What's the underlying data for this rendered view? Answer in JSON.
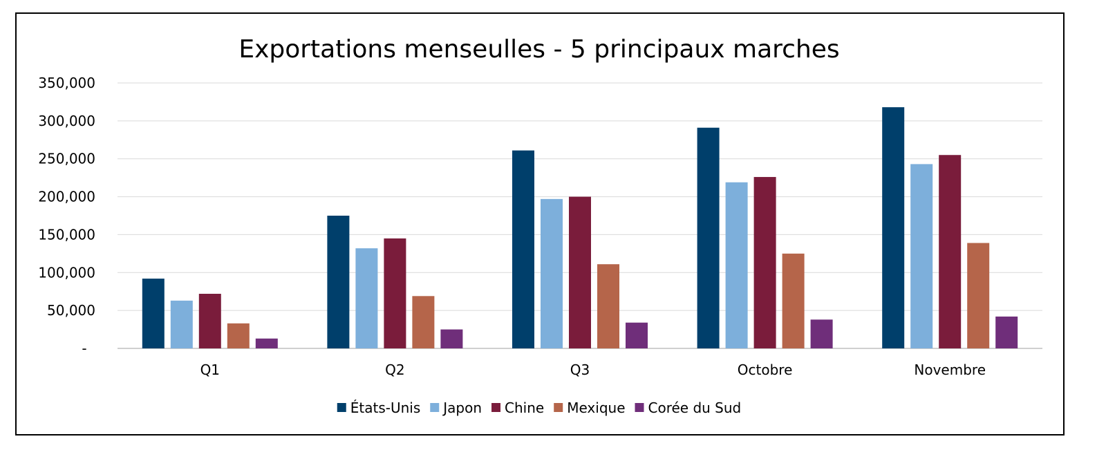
{
  "chart_data": {
    "type": "bar",
    "title": "Exportations menseulles - 5 principaux marches",
    "xlabel": "",
    "ylabel": "",
    "categories": [
      "Q1",
      "Q2",
      "Q3",
      "Octobre",
      "Novembre"
    ],
    "y_ticks": [
      {
        "value": 0,
        "label": "-"
      },
      {
        "value": 50000,
        "label": "50,000"
      },
      {
        "value": 100000,
        "label": "100,000"
      },
      {
        "value": 150000,
        "label": "150,000"
      },
      {
        "value": 200000,
        "label": "200,000"
      },
      {
        "value": 250000,
        "label": "250,000"
      },
      {
        "value": 300000,
        "label": "300,000"
      },
      {
        "value": 350000,
        "label": "350,000"
      }
    ],
    "ylim": [
      0,
      350000
    ],
    "grid": true,
    "legend_position": "bottom",
    "series": [
      {
        "name": "États-Unis",
        "color": "#003f6b",
        "values": [
          92000,
          175000,
          261000,
          291000,
          318000
        ]
      },
      {
        "name": "Japon",
        "color": "#7dafdb",
        "values": [
          63000,
          132000,
          197000,
          219000,
          243000
        ]
      },
      {
        "name": "Chine",
        "color": "#7a1c3b",
        "values": [
          72000,
          145000,
          200000,
          226000,
          255000
        ]
      },
      {
        "name": "Mexique",
        "color": "#b5654a",
        "values": [
          33000,
          69000,
          111000,
          125000,
          139000
        ]
      },
      {
        "name": "Corée du Sud",
        "color": "#6f2e7a",
        "values": [
          13000,
          25000,
          34000,
          38000,
          42000
        ]
      }
    ]
  }
}
